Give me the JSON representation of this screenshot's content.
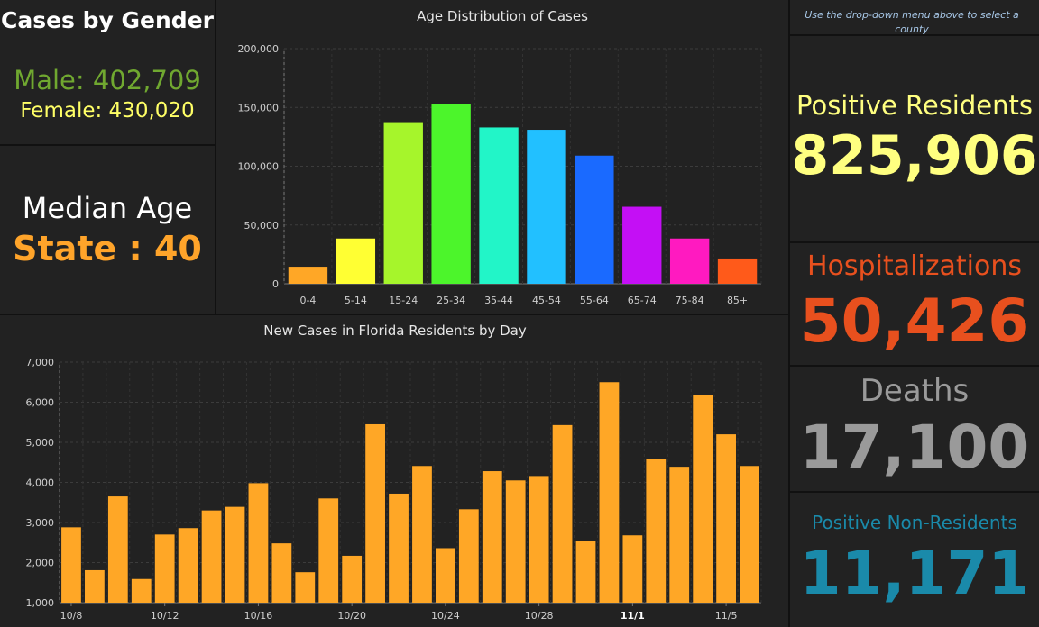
{
  "gender": {
    "title": "Cases by Gender",
    "male": "Male: 402,709",
    "female": "Female: 430,020"
  },
  "median": {
    "label": "Median Age",
    "state": "State : 40"
  },
  "hint": "Use the drop-down menu above to select a county",
  "stats": {
    "positive_residents_label": "Positive Residents",
    "positive_residents_value": "825,906",
    "hospitalizations_label": "Hospitalizations",
    "hospitalizations_value": "50,426",
    "deaths_label": "Deaths",
    "deaths_value": "17,100",
    "non_residents_label": "Positive Non-Residents",
    "non_residents_value": "11,171"
  },
  "colors": {
    "male": "#70a830",
    "female": "#ffff66",
    "median_state": "#ffa42a",
    "positive_residents": "#ffff80",
    "hospitalizations": "#e8501e",
    "deaths": "#9a9a9a",
    "non_residents": "#1a8aaa",
    "daily_bars": "#ffa726"
  },
  "chart_data": [
    {
      "type": "bar",
      "title": "Age Distribution of Cases",
      "categories": [
        "0-4",
        "5-14",
        "15-24",
        "25-34",
        "35-44",
        "45-54",
        "55-64",
        "65-74",
        "75-84",
        "85+"
      ],
      "values": [
        14500,
        38500,
        137500,
        153000,
        133000,
        131000,
        109000,
        65500,
        38500,
        21500
      ],
      "colors": [
        "#ffa726",
        "#ffff33",
        "#a6f52b",
        "#4cf52b",
        "#22f5c8",
        "#22c0ff",
        "#1a6aff",
        "#c40ff5",
        "#ff1ac0",
        "#ff5a1a"
      ],
      "ylim": [
        0,
        200000
      ],
      "yticks": [
        0,
        50000,
        100000,
        150000,
        200000
      ],
      "ytick_labels": [
        "0",
        "50,000",
        "100,000",
        "150,000",
        "200,000"
      ],
      "grid": true
    },
    {
      "type": "bar",
      "title": "New Cases in Florida Residents by Day",
      "values": [
        2880,
        1810,
        3650,
        1590,
        2700,
        2860,
        3300,
        3390,
        3980,
        2480,
        1760,
        3600,
        2170,
        5450,
        3720,
        4410,
        2360,
        3330,
        4280,
        4050,
        4160,
        5430,
        2530,
        6500,
        2680,
        4590,
        4390,
        6170,
        5200,
        4410
      ],
      "xtick_labels": [
        "10/8",
        "10/12",
        "10/16",
        "10/20",
        "10/24",
        "10/28",
        "11/1",
        "11/5"
      ],
      "xtick_bold": [
        false,
        false,
        false,
        false,
        false,
        false,
        true,
        false
      ],
      "ylim": [
        1000,
        7000
      ],
      "yticks": [
        1000,
        2000,
        3000,
        4000,
        5000,
        6000,
        7000
      ],
      "ytick_labels": [
        "1,000",
        "2,000",
        "3,000",
        "4,000",
        "5,000",
        "6,000",
        "7,000"
      ],
      "grid": true
    }
  ]
}
